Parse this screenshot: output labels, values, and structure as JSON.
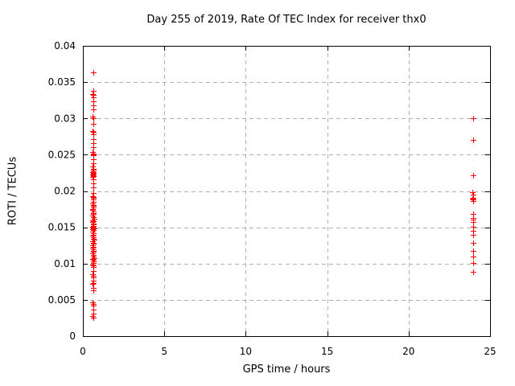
{
  "chart_data": {
    "type": "scatter",
    "title": "Day 255 of 2019, Rate Of TEC Index for receiver thx0",
    "xlabel": "GPS time / hours",
    "ylabel": "ROTI / TECUs",
    "xlim": [
      0,
      25
    ],
    "ylim": [
      0,
      0.04
    ],
    "xtick_values": [
      0,
      5,
      10,
      15,
      20,
      25
    ],
    "xtick_labels": [
      "0",
      "5",
      "10",
      "15",
      "20",
      "25"
    ],
    "ytick_values": [
      0,
      0.005,
      0.01,
      0.015,
      0.02,
      0.025,
      0.03,
      0.035,
      0.04
    ],
    "ytick_labels": [
      "0",
      "0.005",
      "0.01",
      "0.015",
      "0.02",
      "0.025",
      "0.03",
      "0.035",
      "0.04"
    ],
    "grid": true,
    "legend": "none",
    "marker": "plus",
    "marker_color": "#ff0000",
    "grid_color": "#b0b0b0",
    "axis_color": "#000000",
    "background_color": "#ffffff",
    "points": [
      [
        0.62,
        0.0363
      ],
      [
        0.63,
        0.0338
      ],
      [
        0.6,
        0.0334
      ],
      [
        0.64,
        0.0332
      ],
      [
        0.62,
        0.0329
      ],
      [
        0.63,
        0.0323
      ],
      [
        0.62,
        0.0318
      ],
      [
        0.63,
        0.0312
      ],
      [
        0.6,
        0.0302
      ],
      [
        0.64,
        0.03
      ],
      [
        0.62,
        0.0292
      ],
      [
        0.6,
        0.0283
      ],
      [
        0.63,
        0.0281
      ],
      [
        0.62,
        0.0278
      ],
      [
        0.63,
        0.0271
      ],
      [
        0.62,
        0.0266
      ],
      [
        0.64,
        0.026
      ],
      [
        0.61,
        0.0254
      ],
      [
        0.63,
        0.0251
      ],
      [
        0.62,
        0.025
      ],
      [
        0.64,
        0.0249
      ],
      [
        0.62,
        0.0244
      ],
      [
        0.63,
        0.0238
      ],
      [
        0.61,
        0.0234
      ],
      [
        0.64,
        0.0231
      ],
      [
        0.62,
        0.0229
      ],
      [
        0.66,
        0.0227
      ],
      [
        0.6,
        0.0226
      ],
      [
        0.63,
        0.0225
      ],
      [
        0.65,
        0.0224
      ],
      [
        0.61,
        0.0223
      ],
      [
        0.64,
        0.0222
      ],
      [
        0.62,
        0.0221
      ],
      [
        0.66,
        0.022
      ],
      [
        0.59,
        0.0219
      ],
      [
        0.63,
        0.0216
      ],
      [
        0.62,
        0.021
      ],
      [
        0.64,
        0.0205
      ],
      [
        0.62,
        0.0197
      ],
      [
        0.6,
        0.0193
      ],
      [
        0.63,
        0.0192
      ],
      [
        0.65,
        0.0191
      ],
      [
        0.62,
        0.0188
      ],
      [
        0.64,
        0.0185
      ],
      [
        0.6,
        0.0183
      ],
      [
        0.62,
        0.0181
      ],
      [
        0.66,
        0.0179
      ],
      [
        0.63,
        0.0177
      ],
      [
        0.58,
        0.0175
      ],
      [
        0.61,
        0.0174
      ],
      [
        0.64,
        0.0172
      ],
      [
        0.62,
        0.017
      ],
      [
        0.65,
        0.0168
      ],
      [
        0.6,
        0.0166
      ],
      [
        0.63,
        0.0164
      ],
      [
        0.67,
        0.0162
      ],
      [
        0.61,
        0.016
      ],
      [
        0.64,
        0.0158
      ],
      [
        0.59,
        0.0157
      ],
      [
        0.62,
        0.0155
      ],
      [
        0.66,
        0.0154
      ],
      [
        0.63,
        0.0152
      ],
      [
        0.6,
        0.0151
      ],
      [
        0.65,
        0.015
      ],
      [
        0.62,
        0.0149
      ],
      [
        0.68,
        0.0148
      ],
      [
        0.61,
        0.0147
      ],
      [
        0.64,
        0.0146
      ],
      [
        0.58,
        0.0144
      ],
      [
        0.63,
        0.0142
      ],
      [
        0.66,
        0.014
      ],
      [
        0.61,
        0.0138
      ],
      [
        0.64,
        0.0136
      ],
      [
        0.62,
        0.0134
      ],
      [
        0.67,
        0.0133
      ],
      [
        0.6,
        0.0131
      ],
      [
        0.63,
        0.0129
      ],
      [
        0.65,
        0.0127
      ],
      [
        0.61,
        0.0125
      ],
      [
        0.64,
        0.0123
      ],
      [
        0.59,
        0.0122
      ],
      [
        0.62,
        0.012
      ],
      [
        0.66,
        0.0118
      ],
      [
        0.63,
        0.0116
      ],
      [
        0.6,
        0.0114
      ],
      [
        0.64,
        0.0112
      ],
      [
        0.62,
        0.011
      ],
      [
        0.67,
        0.0108
      ],
      [
        0.61,
        0.0106
      ],
      [
        0.64,
        0.0105
      ],
      [
        0.62,
        0.0103
      ],
      [
        0.65,
        0.0101
      ],
      [
        0.6,
        0.0099
      ],
      [
        0.63,
        0.0098
      ],
      [
        0.62,
        0.0095
      ],
      [
        0.64,
        0.009
      ],
      [
        0.61,
        0.0085
      ],
      [
        0.63,
        0.0083
      ],
      [
        0.65,
        0.0081
      ],
      [
        0.62,
        0.0076
      ],
      [
        0.64,
        0.0073
      ],
      [
        0.6,
        0.0072
      ],
      [
        0.63,
        0.0066
      ],
      [
        0.62,
        0.0063
      ],
      [
        0.61,
        0.0046
      ],
      [
        0.64,
        0.0044
      ],
      [
        0.62,
        0.0042
      ],
      [
        0.63,
        0.0037
      ],
      [
        0.62,
        0.0031
      ],
      [
        0.61,
        0.0028
      ],
      [
        0.63,
        0.0026
      ],
      [
        23.97,
        0.03
      ],
      [
        23.97,
        0.027
      ],
      [
        23.96,
        0.0222
      ],
      [
        23.9,
        0.0198
      ],
      [
        23.95,
        0.0195
      ],
      [
        23.97,
        0.0191
      ],
      [
        23.93,
        0.0189
      ],
      [
        23.98,
        0.0188
      ],
      [
        23.95,
        0.0186
      ],
      [
        23.96,
        0.0168
      ],
      [
        23.94,
        0.0163
      ],
      [
        23.97,
        0.0161
      ],
      [
        23.95,
        0.0157
      ],
      [
        23.96,
        0.0151
      ],
      [
        23.94,
        0.0145
      ],
      [
        23.96,
        0.014
      ],
      [
        23.95,
        0.0129
      ],
      [
        23.96,
        0.0117
      ],
      [
        23.94,
        0.011
      ],
      [
        23.96,
        0.0101
      ],
      [
        23.95,
        0.0089
      ]
    ]
  }
}
